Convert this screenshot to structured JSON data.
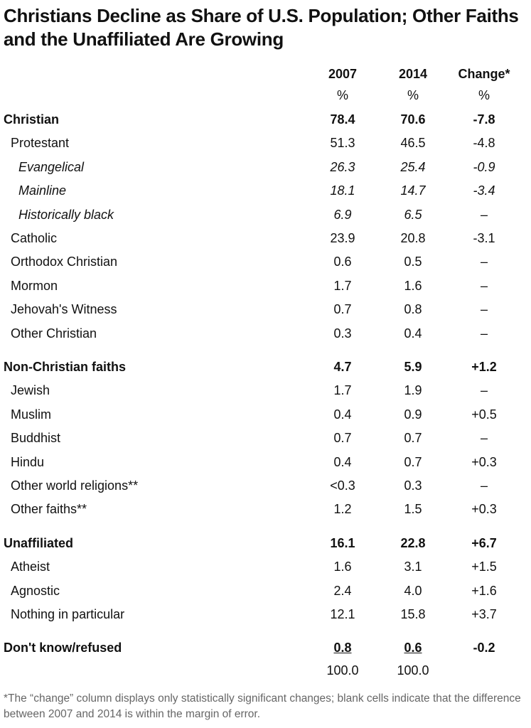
{
  "header": {
    "title": "Christians Decline as Share of U.S. Population; Other Faiths and the Unaffiliated Are Growing"
  },
  "table": {
    "columns": [
      "2007",
      "2014",
      "Change*"
    ],
    "units": [
      "%",
      "%",
      "%"
    ],
    "groups": [
      {
        "label": "Christian",
        "values": [
          "78.4",
          "70.6",
          "-7.8"
        ],
        "rows": [
          {
            "label": "Protestant",
            "values": [
              "51.3",
              "46.5",
              "-4.8"
            ],
            "rows": [
              {
                "label": "Evangelical",
                "values": [
                  "26.3",
                  "25.4",
                  "-0.9"
                ]
              },
              {
                "label": "Mainline",
                "values": [
                  "18.1",
                  "14.7",
                  "-3.4"
                ]
              },
              {
                "label": "Historically black",
                "values": [
                  "6.9",
                  "6.5",
                  "–"
                ]
              }
            ]
          },
          {
            "label": "Catholic",
            "values": [
              "23.9",
              "20.8",
              "-3.1"
            ]
          },
          {
            "label": "Orthodox Christian",
            "values": [
              "0.6",
              "0.5",
              "–"
            ]
          },
          {
            "label": "Mormon",
            "values": [
              "1.7",
              "1.6",
              "–"
            ]
          },
          {
            "label": "Jehovah's Witness",
            "values": [
              "0.7",
              "0.8",
              "–"
            ]
          },
          {
            "label": "Other Christian",
            "values": [
              "0.3",
              "0.4",
              "–"
            ]
          }
        ]
      },
      {
        "label": "Non-Christian faiths",
        "values": [
          "4.7",
          "5.9",
          "+1.2"
        ],
        "rows": [
          {
            "label": "Jewish",
            "values": [
              "1.7",
              "1.9",
              "–"
            ]
          },
          {
            "label": "Muslim",
            "values": [
              "0.4",
              "0.9",
              "+0.5"
            ]
          },
          {
            "label": "Buddhist",
            "values": [
              "0.7",
              "0.7",
              "–"
            ]
          },
          {
            "label": "Hindu",
            "values": [
              "0.4",
              "0.7",
              "+0.3"
            ]
          },
          {
            "label": "Other world religions**",
            "values": [
              "<0.3",
              "0.3",
              "–"
            ]
          },
          {
            "label": "Other faiths**",
            "values": [
              "1.2",
              "1.5",
              "+0.3"
            ]
          }
        ]
      },
      {
        "label": "Unaffiliated",
        "values": [
          "16.1",
          "22.8",
          "+6.7"
        ],
        "rows": [
          {
            "label": "Atheist",
            "values": [
              "1.6",
              "3.1",
              "+1.5"
            ]
          },
          {
            "label": "Agnostic",
            "values": [
              "2.4",
              "4.0",
              "+1.6"
            ]
          },
          {
            "label": "Nothing in particular",
            "values": [
              "12.1",
              "15.8",
              "+3.7"
            ]
          }
        ]
      },
      {
        "label": "Don't know/refused",
        "values": [
          "0.8",
          "0.6",
          "-0.2"
        ],
        "rows": []
      }
    ],
    "total": [
      "100.0",
      "100.0"
    ]
  },
  "footnote": "*The “change” column displays only statistically significant changes; blank cells indicate that the difference between 2007 and 2014 is within the margin of error."
}
